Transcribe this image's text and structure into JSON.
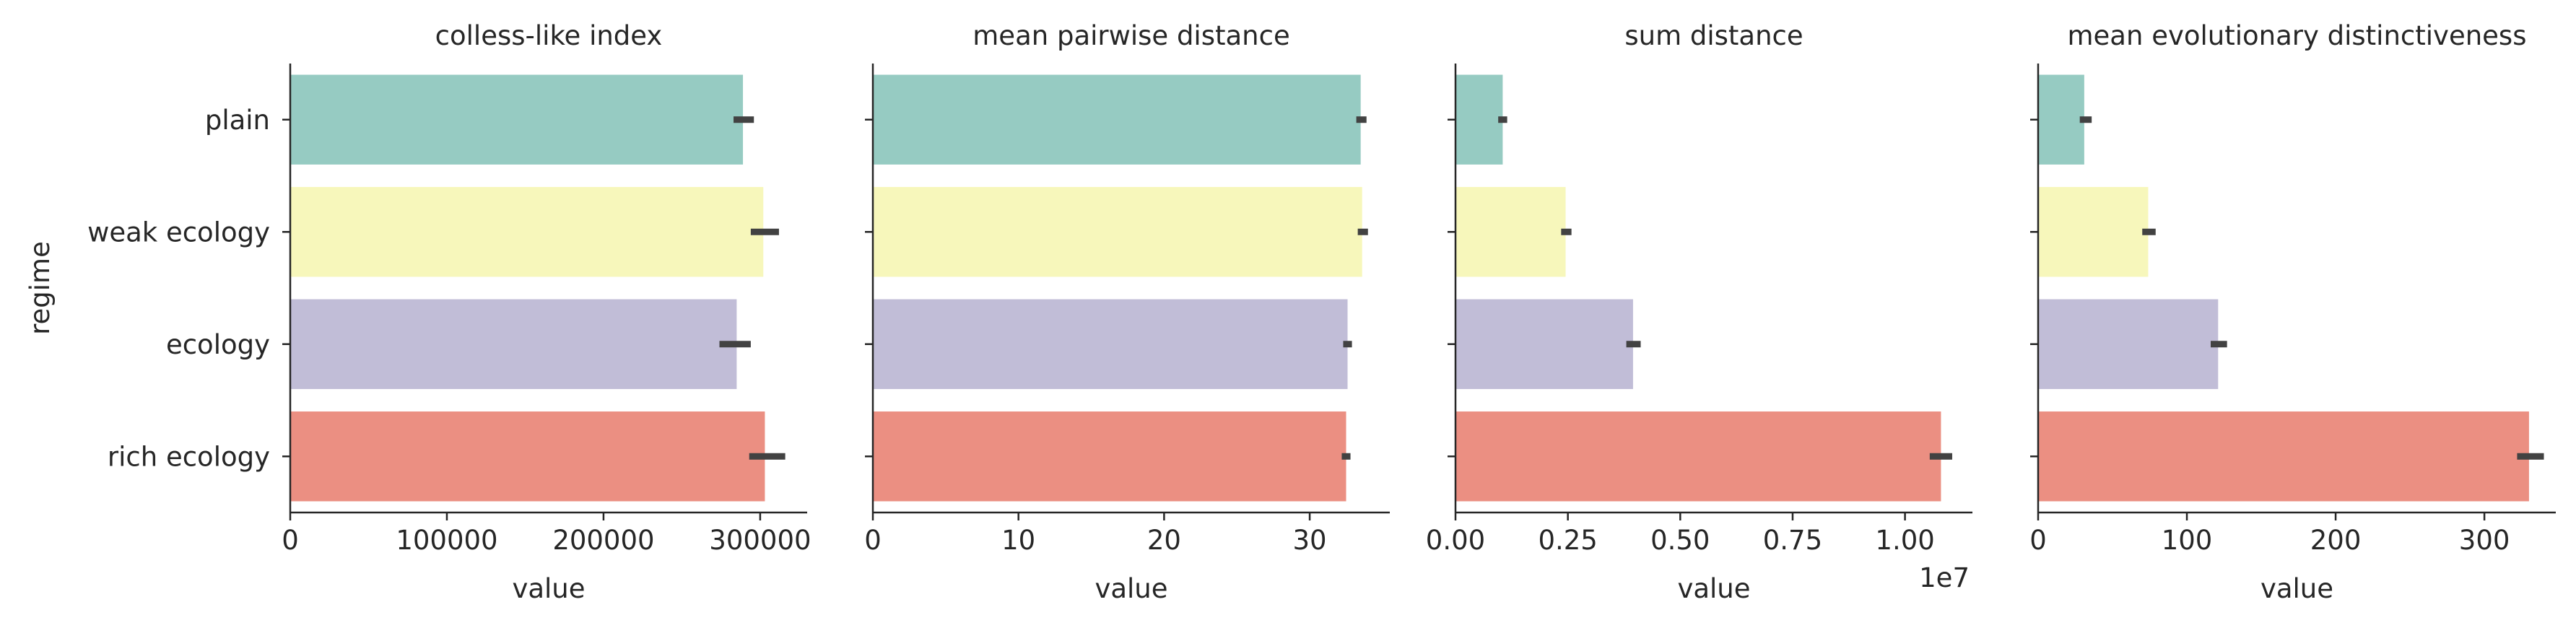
{
  "chart_data": [
    {
      "type": "bar",
      "orientation": "horizontal",
      "title": "colless-like index",
      "xlabel": "value",
      "ylabel": "regime",
      "categories": [
        "plain",
        "weak ecology",
        "ecology",
        "rich ecology"
      ],
      "values": [
        289000,
        302000,
        285000,
        303000
      ],
      "error": [
        [
          283000,
          296000
        ],
        [
          294000,
          312000
        ],
        [
          274000,
          294000
        ],
        [
          293000,
          316000
        ]
      ],
      "xlim": [
        0,
        330000
      ],
      "xticks": [
        0,
        100000,
        200000,
        300000
      ],
      "xtick_labels": [
        "0",
        "100000",
        "200000",
        "300000"
      ],
      "offset_text": ""
    },
    {
      "type": "bar",
      "orientation": "horizontal",
      "title": "mean pairwise distance",
      "xlabel": "value",
      "ylabel": "",
      "categories": [
        "plain",
        "weak ecology",
        "ecology",
        "rich ecology"
      ],
      "values": [
        33.5,
        33.6,
        32.6,
        32.5
      ],
      "error": [
        [
          33.2,
          33.9
        ],
        [
          33.3,
          34.0
        ],
        [
          32.3,
          32.9
        ],
        [
          32.2,
          32.8
        ]
      ],
      "xlim": [
        0,
        35.5
      ],
      "xticks": [
        0,
        10,
        20,
        30
      ],
      "xtick_labels": [
        "0",
        "10",
        "20",
        "30"
      ],
      "offset_text": ""
    },
    {
      "type": "bar",
      "orientation": "horizontal",
      "title": "sum distance",
      "xlabel": "value",
      "ylabel": "",
      "categories": [
        "plain",
        "weak ecology",
        "ecology",
        "rich ecology"
      ],
      "values": [
        1050000,
        2450000,
        3950000,
        10800000
      ],
      "error": [
        [
          950000,
          1150000
        ],
        [
          2350000,
          2580000
        ],
        [
          3800000,
          4120000
        ],
        [
          10550000,
          11050000
        ]
      ],
      "xlim": [
        0,
        11500000
      ],
      "xticks": [
        0,
        2500000,
        5000000,
        7500000,
        10000000
      ],
      "xtick_labels": [
        "0.00",
        "0.25",
        "0.50",
        "0.75",
        "1.00"
      ],
      "offset_text": "1e7"
    },
    {
      "type": "bar",
      "orientation": "horizontal",
      "title": "mean evolutionary distinctiveness",
      "xlabel": "value",
      "ylabel": "",
      "categories": [
        "plain",
        "weak ecology",
        "ecology",
        "rich ecology"
      ],
      "values": [
        31,
        74,
        121,
        330
      ],
      "error": [
        [
          28,
          36
        ],
        [
          70,
          79
        ],
        [
          116,
          127
        ],
        [
          322,
          340
        ]
      ],
      "xlim": [
        0,
        348
      ],
      "xticks": [
        0,
        100,
        200,
        300
      ],
      "xtick_labels": [
        "0",
        "100",
        "200",
        "300"
      ],
      "offset_text": ""
    }
  ],
  "colors": {
    "plain": "#96cbc2",
    "weak ecology": "#f7f7bb",
    "ecology": "#c1bdd7",
    "rich ecology": "#eb8f82",
    "errorbar": "#424242",
    "axis": "#262626"
  }
}
